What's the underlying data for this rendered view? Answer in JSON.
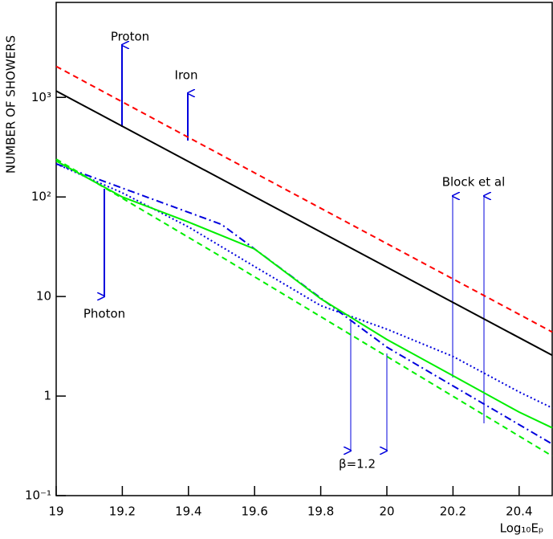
{
  "chart_data": {
    "type": "line",
    "y_label": "NUMBER OF SHOWERS",
    "x_label": "Log₁₀Eₚ",
    "log_y": true,
    "xlim": [
      19,
      20.5
    ],
    "ylim": [
      0.1,
      9000
    ],
    "xticks": [
      19,
      19.2,
      19.4,
      19.6,
      19.8,
      20,
      20.2,
      20.4
    ],
    "yticks": [
      {
        "value": 0.1,
        "label": "10⁻¹"
      },
      1,
      10,
      {
        "value": 100,
        "label": "10²"
      },
      {
        "value": 1000,
        "label": "10³"
      }
    ],
    "series": [
      {
        "color": "#ff0000",
        "style": "dash",
        "x": [
          19,
          19.5,
          20,
          20.5
        ],
        "values": [
          2050,
          263,
          34,
          4.4
        ]
      },
      {
        "color": "#000000",
        "style": "solid",
        "x": [
          19,
          19.5,
          20,
          20.5
        ],
        "values": [
          1160,
          151,
          19.7,
          2.57
        ]
      },
      {
        "color": "#0000dd",
        "style": "dot",
        "x": [
          19,
          19.2,
          19.4,
          19.6,
          19.8,
          20,
          20.2,
          20.4,
          20.5
        ],
        "values": [
          215,
          110,
          50,
          20,
          8.1,
          4.7,
          2.5,
          1.1,
          0.76
        ]
      },
      {
        "color": "#0000dd",
        "style": "dashdot",
        "x": [
          19,
          19.5,
          20,
          20.5
        ],
        "values": [
          215,
          53,
          3.1,
          0.33
        ]
      },
      {
        "color": "#00ee00",
        "style": "solid",
        "x": [
          19,
          19.2,
          19.4,
          19.6,
          19.8,
          20,
          20.2,
          20.4,
          20.5
        ],
        "values": [
          230,
          100,
          56,
          30,
          9.5,
          3.7,
          1.6,
          0.69,
          0.48
        ]
      },
      {
        "color": "#00ee00",
        "style": "dash",
        "x": [
          19,
          19.5,
          20,
          20.5
        ],
        "values": [
          240,
          25,
          2.5,
          0.25
        ]
      }
    ],
    "annotations": [
      "Proton",
      "Iron",
      "Photon",
      "Block et al",
      "β=1.2"
    ]
  }
}
